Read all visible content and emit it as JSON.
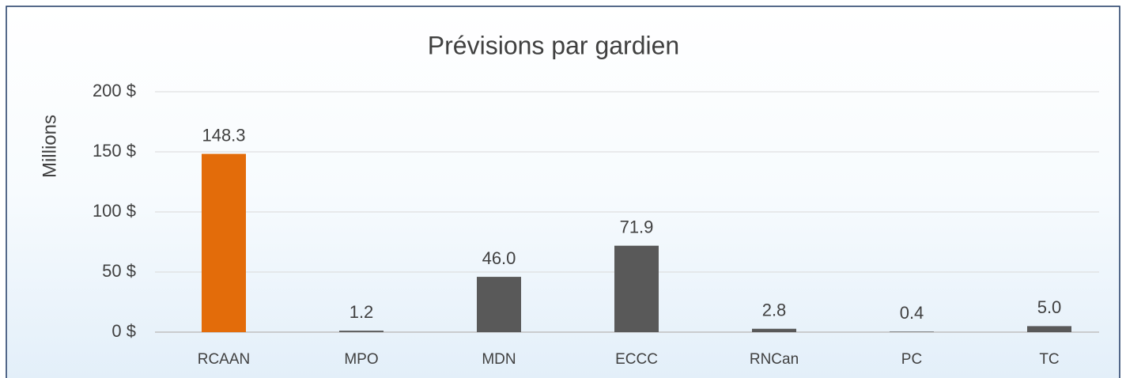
{
  "chart_data": {
    "type": "bar",
    "title": "Prévisions par gardien",
    "y_label": "Millions",
    "categories": [
      "RCAAN",
      "MPO",
      "MDN",
      "ECCC",
      "RNCan",
      "PC",
      "TC"
    ],
    "values": [
      148.3,
      1.2,
      46.0,
      71.9,
      2.8,
      0.4,
      5.0
    ],
    "value_labels": [
      "148.3",
      "1.2",
      "46.0",
      "71.9",
      "2.8",
      "0.4",
      "5.0"
    ],
    "colors": [
      "#e36c0a",
      "#595959",
      "#595959",
      "#595959",
      "#595959",
      "#595959",
      "#595959"
    ],
    "ylim": [
      0,
      200
    ],
    "yticks": [
      {
        "value": 0,
        "label": "0 $"
      },
      {
        "value": 50,
        "label": "50 $"
      },
      {
        "value": 100,
        "label": "100 $"
      },
      {
        "value": 150,
        "label": "150 $"
      },
      {
        "value": 200,
        "label": "200 $"
      }
    ],
    "grid": true
  }
}
